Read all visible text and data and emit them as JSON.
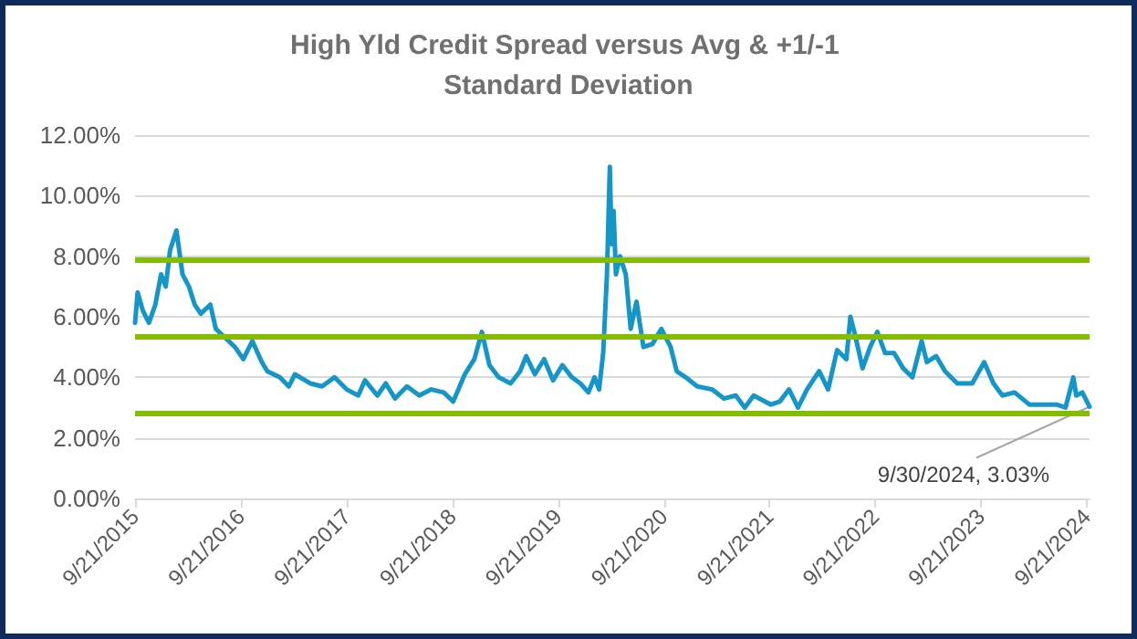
{
  "chart_data": {
    "type": "line",
    "title": "High Yld Credit Spread versus Avg & +1/-1 Standard Deviation",
    "series": [
      {
        "color": "#1496c8",
        "x": [
          "2015-09-21",
          "2015-09-30",
          "2015-10-18",
          "2015-11-08",
          "2015-11-30",
          "2015-12-20",
          "2016-01-05",
          "2016-01-20",
          "2016-02-11",
          "2016-03-03",
          "2016-03-25",
          "2016-04-14",
          "2016-05-05",
          "2016-06-07",
          "2016-06-26",
          "2016-07-29",
          "2016-08-31",
          "2016-09-29",
          "2016-10-30",
          "2016-12-02",
          "2016-12-21",
          "2017-02-02",
          "2017-03-05",
          "2017-03-26",
          "2017-05-18",
          "2017-06-28",
          "2017-08-10",
          "2017-09-21",
          "2017-10-31",
          "2017-11-23",
          "2018-01-05",
          "2018-02-03",
          "2018-03-07",
          "2018-04-17",
          "2018-05-30",
          "2018-07-10",
          "2018-08-22",
          "2018-09-24",
          "2018-11-03",
          "2018-12-06",
          "2019-01-01",
          "2019-01-27",
          "2019-02-28",
          "2019-04-10",
          "2019-05-13",
          "2019-06-03",
          "2019-07-03",
          "2019-08-04",
          "2019-09-04",
          "2019-10-06",
          "2019-11-08",
          "2019-12-07",
          "2020-01-04",
          "2020-01-25",
          "2020-02-10",
          "2020-02-24",
          "2020-03-08",
          "2020-03-18",
          "2020-03-24",
          "2020-03-31",
          "2020-04-08",
          "2020-04-22",
          "2020-05-12",
          "2020-05-29",
          "2020-06-18",
          "2020-07-12",
          "2020-08-12",
          "2020-09-12",
          "2020-10-14",
          "2020-11-04",
          "2020-12-05",
          "2021-01-14",
          "2021-03-06",
          "2021-04-16",
          "2021-05-27",
          "2021-06-27",
          "2021-07-28",
          "2021-09-25",
          "2021-10-26",
          "2021-11-27",
          "2021-12-28",
          "2022-01-28",
          "2022-03-11",
          "2022-04-11",
          "2022-05-12",
          "2022-06-13",
          "2022-06-27",
          "2022-07-13",
          "2022-08-08",
          "2022-09-03",
          "2022-09-28",
          "2022-10-25",
          "2022-11-25",
          "2022-12-26",
          "2023-01-27",
          "2023-02-28",
          "2023-03-18",
          "2023-04-19",
          "2023-05-20",
          "2023-07-01",
          "2023-08-22",
          "2023-10-02",
          "2023-11-03",
          "2023-12-04",
          "2024-01-15",
          "2024-03-06",
          "2024-04-18",
          "2024-06-08",
          "2024-07-09",
          "2024-08-05",
          "2024-08-15",
          "2024-09-05",
          "2024-09-21",
          "2024-09-30"
        ],
        "values": [
          5.8,
          6.8,
          6.2,
          5.8,
          6.4,
          7.4,
          7.0,
          8.2,
          8.85,
          7.4,
          7.0,
          6.4,
          6.1,
          6.4,
          5.6,
          5.3,
          5.0,
          4.6,
          5.2,
          4.5,
          4.2,
          4.0,
          3.7,
          4.1,
          3.8,
          3.7,
          4.0,
          3.6,
          3.4,
          3.9,
          3.4,
          3.8,
          3.3,
          3.7,
          3.4,
          3.6,
          3.5,
          3.2,
          4.1,
          4.6,
          5.5,
          4.4,
          4.0,
          3.8,
          4.2,
          4.7,
          4.1,
          4.6,
          3.9,
          4.4,
          4.0,
          3.8,
          3.5,
          4.0,
          3.6,
          4.8,
          7.4,
          10.95,
          8.4,
          9.5,
          7.4,
          8.0,
          7.4,
          5.6,
          6.5,
          5.0,
          5.1,
          5.6,
          5.0,
          4.2,
          4.0,
          3.7,
          3.6,
          3.3,
          3.4,
          3.0,
          3.4,
          3.1,
          3.2,
          3.6,
          3.0,
          3.6,
          4.2,
          3.6,
          4.9,
          4.6,
          6.0,
          5.4,
          4.3,
          5.0,
          5.5,
          4.8,
          4.8,
          4.3,
          4.0,
          5.2,
          4.5,
          4.7,
          4.2,
          3.8,
          3.8,
          4.5,
          3.8,
          3.4,
          3.5,
          3.1,
          3.1,
          3.1,
          3.0,
          4.0,
          3.4,
          3.5,
          3.2,
          3.03
        ]
      }
    ],
    "xlim": [
      "2015-09-21",
      "2024-09-30"
    ],
    "xticks": [
      {
        "value": "2015-09-21",
        "label": "9/21/2015"
      },
      {
        "value": "2016-09-21",
        "label": "9/21/2016"
      },
      {
        "value": "2017-09-21",
        "label": "9/21/2017"
      },
      {
        "value": "2018-09-21",
        "label": "9/21/2018"
      },
      {
        "value": "2019-09-21",
        "label": "9/21/2019"
      },
      {
        "value": "2020-09-21",
        "label": "9/21/2020"
      },
      {
        "value": "2021-09-21",
        "label": "9/21/2021"
      },
      {
        "value": "2022-09-21",
        "label": "9/21/2022"
      },
      {
        "value": "2023-09-21",
        "label": "9/21/2023"
      },
      {
        "value": "2024-09-21",
        "label": "9/21/2024"
      }
    ],
    "ylim": [
      0,
      12
    ],
    "yticks": [
      {
        "value": 0,
        "label": "0.00%"
      },
      {
        "value": 2,
        "label": "2.00%"
      },
      {
        "value": 4,
        "label": "4.00%"
      },
      {
        "value": 6,
        "label": "6.00%"
      },
      {
        "value": 8,
        "label": "8.00%"
      },
      {
        "value": 10,
        "label": "10.00%"
      },
      {
        "value": 12,
        "label": "12.00%"
      }
    ],
    "ref_lines": [
      {
        "axis": "y",
        "value": 7.9,
        "color": "#84bd00"
      },
      {
        "axis": "y",
        "value": 5.35,
        "color": "#84bd00"
      },
      {
        "axis": "y",
        "value": 2.8,
        "color": "#84bd00"
      }
    ],
    "annotations": [
      {
        "text": "9/30/2024, 3.03%",
        "x": "2024-09-30",
        "y": 3.03
      }
    ],
    "grid": "y",
    "marker": "none",
    "line_style": "solid"
  }
}
